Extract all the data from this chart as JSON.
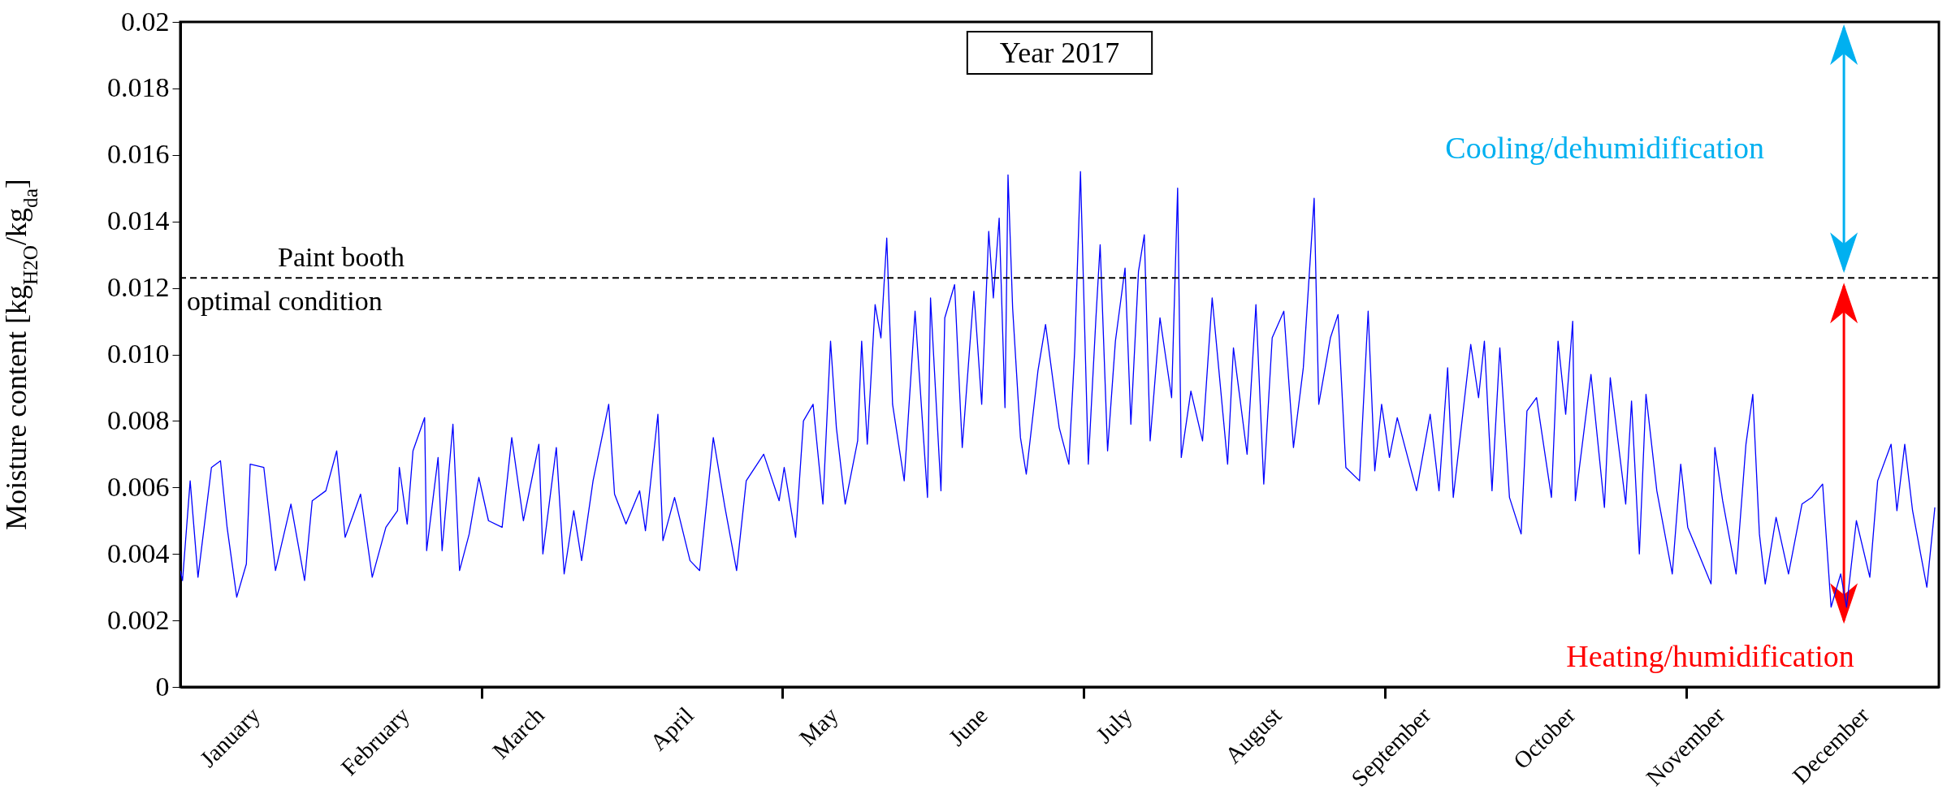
{
  "chart_data": {
    "type": "line",
    "title": "Year 2017",
    "ylabel": "Moisture content [kg$_{H2O}$/kg$_{da}$]",
    "x": [
      "2017-01-01T00:00",
      "2017-01-01T11:00",
      "2017-01-03T01:00",
      "2017-01-04T16:00",
      "2017-01-07T11:00",
      "2017-01-09T08:00",
      "2017-01-10T17:00",
      "2017-01-12T17:00",
      "2017-01-14T17:00",
      "2017-01-15T12:00",
      "2017-01-18T08:00",
      "2017-01-20T18:00",
      "2017-01-23T23:00",
      "2017-01-26T19:00",
      "2017-01-28T09:00",
      "2017-01-31T05:00",
      "2017-02-02T11:00",
      "2017-02-04T05:00",
      "2017-02-07T10:00",
      "2017-02-09T20:00",
      "2017-02-12T16:00",
      "2017-02-15T02:00",
      "2017-02-15T11:00",
      "2017-02-17T02:00",
      "2017-02-18T07:00",
      "2017-02-20T17:00",
      "2017-02-21T03:00",
      "2017-02-23T12:00",
      "2017-02-24T08:00",
      "2017-02-26T14:00",
      "2017-02-27T23:00",
      "2017-03-01T23:00",
      "2017-03-03T23:00",
      "2017-03-05T23:00",
      "2017-03-08T19:00",
      "2017-03-10T19:00",
      "2017-03-13T05:00",
      "2017-03-16T10:00",
      "2017-03-17T06:00",
      "2017-03-20T01:00",
      "2017-03-21T16:00",
      "2017-03-23T16:00",
      "2017-03-25T07:00",
      "2017-03-27T16:00",
      "2017-03-30T22:00",
      "2017-04-01T03:00",
      "2017-04-03T12:00",
      "2017-04-06T08:00",
      "2017-04-07T13:00",
      "2017-04-10T03:00",
      "2017-04-11T04:00",
      "2017-04-13T14:00",
      "2017-04-16T19:00",
      "2017-04-18T19:00",
      "2017-04-21T15:00",
      "2017-04-24T01:00",
      "2017-04-26T11:00",
      "2017-04-28T11:00",
      "2017-05-02T02:00",
      "2017-05-05T07:00",
      "2017-05-06T08:00",
      "2017-05-08T17:00",
      "2017-05-10T08:00",
      "2017-05-12T08:00",
      "2017-05-14T09:00",
      "2017-05-15T23:00",
      "2017-05-17T04:00",
      "2017-05-19T00:00",
      "2017-05-21T14:00",
      "2017-05-22T10:00",
      "2017-05-23T14:00",
      "2017-05-25T05:00",
      "2017-05-26T10:00",
      "2017-05-27T15:00",
      "2017-05-28T20:00",
      "2017-05-31T06:00",
      "2017-06-02T12:00",
      "2017-06-05T02:00",
      "2017-06-05T17:00",
      "2017-06-07T21:00",
      "2017-06-08T16:00",
      "2017-06-10T17:00",
      "2017-06-12T07:00",
      "2017-06-14T17:00",
      "2017-06-16T08:00",
      "2017-06-17T19:00",
      "2017-06-18T18:00",
      "2017-06-19T23:00",
      "2017-06-21T04:00",
      "2017-06-21T19:00",
      "2017-06-22T18:00",
      "2017-06-24T09:00",
      "2017-06-25T14:00",
      "2017-06-28T00:00",
      "2017-06-29T14:00",
      "2017-07-02T10:00",
      "2017-07-04T10:00",
      "2017-07-05T15:00",
      "2017-07-06T20:00",
      "2017-07-08T11:00",
      "2017-07-10T01:00",
      "2017-07-10T22:00",
      "2017-07-12T11:00",
      "2017-07-14T02:00",
      "2017-07-16T02:00",
      "2017-07-17T07:00",
      "2017-07-18T21:00",
      "2017-07-20T02:00",
      "2017-07-21T07:00",
      "2017-07-23T08:00",
      "2017-07-25T18:00",
      "2017-07-27T00:00",
      "2017-07-27T18:00",
      "2017-07-29T18:00",
      "2017-08-01T04:00",
      "2017-08-03T04:00",
      "2017-08-06T09:00",
      "2017-08-07T14:00",
      "2017-08-10T10:00",
      "2017-08-12T06:00",
      "2017-08-13T21:00",
      "2017-08-15T15:00",
      "2017-08-18T01:00",
      "2017-08-20T01:00",
      "2017-08-22T02:00",
      "2017-08-24T08:00",
      "2017-08-25T07:00",
      "2017-08-27T17:00",
      "2017-08-29T07:00",
      "2017-08-30T22:00",
      "2017-09-02T18:00",
      "2017-09-04T13:00",
      "2017-09-05T22:00",
      "2017-09-07T08:00",
      "2017-09-08T23:00",
      "2017-09-10T14:00",
      "2017-09-14T14:00",
      "2017-09-17T10:00",
      "2017-09-19T06:00",
      "2017-09-21T01:00",
      "2017-09-22T05:00",
      "2017-09-25T20:00",
      "2017-09-27T11:00",
      "2017-09-28T16:00",
      "2017-09-30T06:00",
      "2017-10-01T21:00",
      "2017-10-03T21:00",
      "2017-10-06T07:00",
      "2017-10-07T12:00",
      "2017-10-09T12:00",
      "2017-10-12T14:00",
      "2017-10-13T23:00",
      "2017-10-15T13:00",
      "2017-10-17T00:00",
      "2017-10-17T13:00",
      "2017-10-20T19:00",
      "2017-10-23T14:00",
      "2017-10-24T19:00",
      "2017-10-28T00:00",
      "2017-10-29T05:00",
      "2017-10-30T20:00",
      "2017-11-01T05:00",
      "2017-11-03T11:00",
      "2017-11-06T16:00",
      "2017-11-08T10:00",
      "2017-11-09T21:00",
      "2017-11-11T21:00",
      "2017-11-14T17:00",
      "2017-11-15T12:00",
      "2017-11-17T03:00",
      "2017-11-19T22:00",
      "2017-11-21T23:00",
      "2017-11-23T09:00",
      "2017-11-24T18:00",
      "2017-11-25T23:00",
      "2017-11-28T05:00",
      "2017-11-30T19:00",
      "2017-12-03T14:00",
      "2017-12-05T15:00",
      "2017-12-07T21:00",
      "2017-12-09T15:00",
      "2017-12-11T15:00",
      "2017-12-12T20:00",
      "2017-12-14T21:00",
      "2017-12-17T16:00",
      "2017-12-19T07:00",
      "2017-12-22T02:00",
      "2017-12-23T07:00",
      "2017-12-24T22:00",
      "2017-12-26T13:00",
      "2017-12-29T12:00",
      "2017-12-31T04:00"
    ],
    "series": [
      {
        "color": "#0000ff",
        "values": [
          0.0035,
          0.0032,
          0.0062,
          0.0033,
          0.0066,
          0.0068,
          0.0048,
          0.0027,
          0.0037,
          0.0067,
          0.0066,
          0.0035,
          0.0055,
          0.0032,
          0.0056,
          0.0059,
          0.0071,
          0.0045,
          0.0058,
          0.0033,
          0.0048,
          0.0053,
          0.0066,
          0.0049,
          0.0071,
          0.0081,
          0.0041,
          0.0069,
          0.0041,
          0.0079,
          0.0035,
          0.0046,
          0.0063,
          0.005,
          0.0048,
          0.0075,
          0.005,
          0.0073,
          0.004,
          0.0072,
          0.0034,
          0.0053,
          0.0038,
          0.0062,
          0.0085,
          0.0058,
          0.0049,
          0.0059,
          0.0047,
          0.0082,
          0.0044,
          0.0057,
          0.0038,
          0.0035,
          0.0075,
          0.0054,
          0.0035,
          0.0062,
          0.007,
          0.0056,
          0.0066,
          0.0045,
          0.008,
          0.0085,
          0.0055,
          0.0104,
          0.0078,
          0.0055,
          0.0074,
          0.0104,
          0.0073,
          0.0115,
          0.0105,
          0.0135,
          0.0085,
          0.0062,
          0.0113,
          0.0057,
          0.0117,
          0.0059,
          0.0111,
          0.0121,
          0.0072,
          0.0119,
          0.0085,
          0.0137,
          0.0117,
          0.0141,
          0.0084,
          0.0154,
          0.0114,
          0.0075,
          0.0064,
          0.0095,
          0.0109,
          0.0078,
          0.0067,
          0.0101,
          0.0155,
          0.0067,
          0.0111,
          0.0133,
          0.0071,
          0.0104,
          0.0126,
          0.0079,
          0.0125,
          0.0136,
          0.0074,
          0.0111,
          0.0087,
          0.015,
          0.0069,
          0.0089,
          0.0074,
          0.0117,
          0.0067,
          0.0102,
          0.007,
          0.0115,
          0.0061,
          0.0105,
          0.0113,
          0.0072,
          0.0096,
          0.0147,
          0.0085,
          0.0105,
          0.0112,
          0.0066,
          0.0062,
          0.0113,
          0.0065,
          0.0085,
          0.0069,
          0.0081,
          0.0059,
          0.0082,
          0.0059,
          0.0096,
          0.0057,
          0.0103,
          0.0087,
          0.0104,
          0.0059,
          0.0102,
          0.0057,
          0.0046,
          0.0083,
          0.0087,
          0.0057,
          0.0104,
          0.0082,
          0.011,
          0.0056,
          0.0094,
          0.0054,
          0.0093,
          0.0055,
          0.0086,
          0.004,
          0.0088,
          0.0059,
          0.0034,
          0.0067,
          0.0048,
          0.0041,
          0.0031,
          0.0072,
          0.0056,
          0.0034,
          0.0073,
          0.0088,
          0.0046,
          0.0031,
          0.0051,
          0.0034,
          0.0055,
          0.0057,
          0.0061,
          0.0024,
          0.0034,
          0.0024,
          0.005,
          0.0033,
          0.0062,
          0.0073,
          0.0053,
          0.0073,
          0.0053,
          0.003,
          0.0054
        ]
      }
    ],
    "xlim": [
      "2017-01-01T00:00",
      "2018-01-01T00:00"
    ],
    "xticks": [
      {
        "value": "2017-01-15",
        "label": "January"
      },
      {
        "value": "2017-02-15",
        "label": "February"
      },
      {
        "value": "2017-03-04T12:00",
        "label": null
      },
      {
        "value": "2017-03-15",
        "label": "March"
      },
      {
        "value": "2017-04-15",
        "label": "April"
      },
      {
        "value": "2017-05-06",
        "label": null
      },
      {
        "value": "2017-05-15",
        "label": "May"
      },
      {
        "value": "2017-06-15",
        "label": "June"
      },
      {
        "value": "2017-07-07T12:00",
        "label": null
      },
      {
        "value": "2017-07-15",
        "label": "July"
      },
      {
        "value": "2017-08-15",
        "label": "August"
      },
      {
        "value": "2017-09-08",
        "label": null
      },
      {
        "value": "2017-09-15",
        "label": "September"
      },
      {
        "value": "2017-10-15",
        "label": "October"
      },
      {
        "value": "2017-11-09T12:00",
        "label": null
      },
      {
        "value": "2017-11-15",
        "label": "November"
      },
      {
        "value": "2017-12-15",
        "label": "December"
      }
    ],
    "ylim": [
      0,
      0.02
    ],
    "yticks": [
      0,
      0.002,
      0.004,
      0.006,
      0.008,
      {
        "value": 0.01,
        "label": "0.010"
      },
      0.012,
      0.014,
      0.016,
      0.018,
      0.02
    ],
    "ref_lines": [
      {
        "axis": "y",
        "value": 0.0123,
        "label": "Paint booth\noptimal condition",
        "color": "#000000",
        "line_style": "dashed"
      }
    ],
    "annotations": [
      "Cooling/dehumidification",
      "Heating/humidification"
    ],
    "grid": false
  }
}
